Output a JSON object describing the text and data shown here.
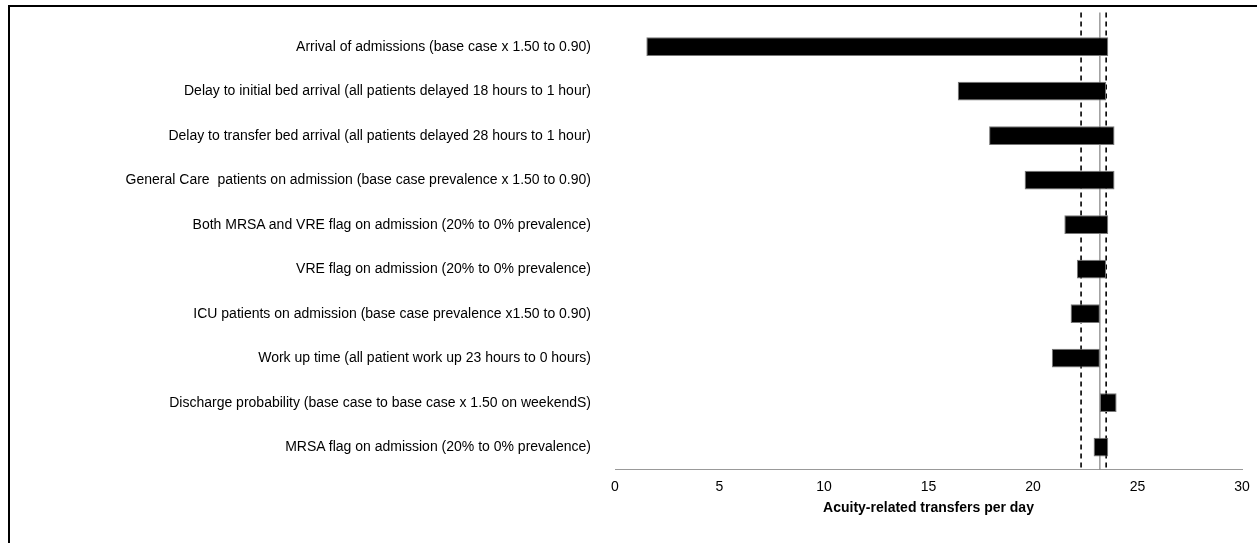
{
  "chart_data": {
    "type": "bar",
    "orientation": "horizontal",
    "xlabel": "Acuity-related transfers per day",
    "categories": [
      "Arrival of admissions (base case x 1.50 to 0.90)",
      "Delay to initial bed arrival (all patients delayed 18 hours to 1 hour)",
      "Delay to transfer bed arrival (all patients delayed 28 hours to 1 hour)",
      "General Care  patients on admission (base case prevalence x 1.50 to 0.90)",
      "Both MRSA and VRE flag on admission (20% to 0% prevalence)",
      "VRE flag on admission (20% to 0% prevalence)",
      "ICU patients on admission (base case prevalence x1.50 to 0.90)",
      "Work up time (all patient work up 23 hours to 0 hours)",
      "Discharge probability (base case to base case x 1.50 on weekendS)",
      "MRSA flag on admission (20% to 0% prevalence)"
    ],
    "base": [
      1.5,
      16.4,
      17.9,
      19.6,
      21.5,
      22.1,
      21.8,
      20.9,
      23.2,
      22.9
    ],
    "values": [
      22.1,
      7.1,
      6.0,
      4.3,
      2.1,
      1.4,
      1.4,
      2.3,
      0.8,
      0.7
    ],
    "color": "#000000",
    "xlim": [
      0,
      30
    ],
    "xticks": [
      0,
      5,
      10,
      15,
      20,
      25,
      30
    ],
    "grid": false,
    "legend": false,
    "ref_lines": [
      {
        "axis": "x",
        "value": 23.2,
        "line_style": "solid",
        "color": "#808080"
      },
      {
        "axis": "x",
        "value": 22.3,
        "line_style": "dashed",
        "color": "#000000"
      },
      {
        "axis": "x",
        "value": 23.5,
        "line_style": "dashed",
        "color": "#000000"
      }
    ]
  }
}
